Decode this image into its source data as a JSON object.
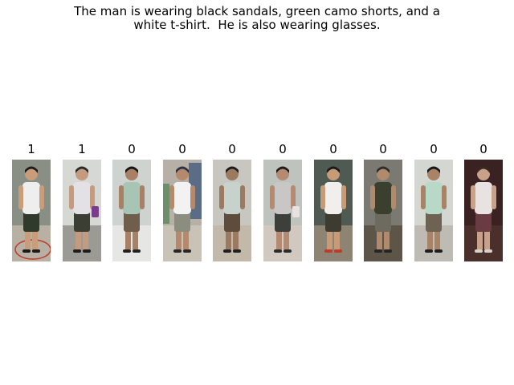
{
  "caption": {
    "line1": "The man is wearing black sandals, green camo shorts, and a",
    "line2": "white t-shirt.  He is also wearing glasses."
  },
  "panels": [
    {
      "label": "1",
      "bg": "#8a8f86",
      "floor": "#b9b0a4",
      "skin": "#c99c7a",
      "hair": "#1d1d1d",
      "shirt": "#eeeeee",
      "pants": "#2f3a2c",
      "shoes": "#1a1a1a",
      "extra": "ring",
      "extra_color": "#c0392b"
    },
    {
      "label": "1",
      "bg": "#d6d8d4",
      "floor": "#9c9a95",
      "skin": "#c49b7e",
      "hair": "#2a2a2a",
      "shirt": "#e3e1e5",
      "pants": "#3a3e33",
      "shoes": "#1c1c1c",
      "extra": "bag",
      "extra_color": "#7a3d8c"
    },
    {
      "label": "0",
      "bg": "#cfd3cf",
      "floor": "#e6e6e4",
      "skin": "#a88066",
      "hair": "#151515",
      "shirt": "#a7c4b5",
      "pants": "#6f5e4c",
      "shoes": "#222222",
      "extra": "none",
      "extra_color": "#000000"
    },
    {
      "label": "0",
      "bg": "#b7b0a6",
      "floor": "#c9c2b6",
      "skin": "#b58a6c",
      "hair": "#2c3345",
      "shirt": "#f2f2f2",
      "pants": "#8a8d80",
      "shoes": "#262626",
      "extra": "shelf",
      "extra_color": "#5a6c86"
    },
    {
      "label": "0",
      "bg": "#c7c6c1",
      "floor": "#c2b9ab",
      "skin": "#9c7a62",
      "hair": "#1b1b1b",
      "shirt": "#c8d2cc",
      "pants": "#5e4c3d",
      "shoes": "#1f1f1f",
      "extra": "none",
      "extra_color": "#000000"
    },
    {
      "label": "0",
      "bg": "#bfc3be",
      "floor": "#d1c8c0",
      "skin": "#b48b72",
      "hair": "#201c1a",
      "shirt": "#c9c7c6",
      "pants": "#3c3f3a",
      "shoes": "#2a2a2a",
      "extra": "bag",
      "extra_color": "#e7e2df"
    },
    {
      "label": "0",
      "bg": "#4e5a52",
      "floor": "#8e8474",
      "skin": "#c79a78",
      "hair": "#1a1a1a",
      "shirt": "#f0efeb",
      "pants": "#3e3b30",
      "shoes": "#c0392b",
      "extra": "none",
      "extra_color": "#000000"
    },
    {
      "label": "0",
      "bg": "#7a7a72",
      "floor": "#5c5548",
      "skin": "#b08a6c",
      "hair": "#2d2d2d",
      "shirt": "#3a3f2e",
      "pants": "#6d6a60",
      "shoes": "#252525",
      "extra": "none",
      "extra_color": "#000000"
    },
    {
      "label": "0",
      "bg": "#d4d6d2",
      "floor": "#bdbbb4",
      "skin": "#a88367",
      "hair": "#171717",
      "shirt": "#b8d8c8",
      "pants": "#6e6252",
      "shoes": "#1d1d1d",
      "extra": "none",
      "extra_color": "#000000"
    },
    {
      "label": "0",
      "bg": "#3b2222",
      "floor": "#4a2f2a",
      "skin": "#c9a08a",
      "hair": "#3a2a22",
      "shirt": "#e8e2e0",
      "pants": "#6b3b44",
      "shoes": "#d9d2cc",
      "extra": "none",
      "extra_color": "#000000"
    }
  ]
}
